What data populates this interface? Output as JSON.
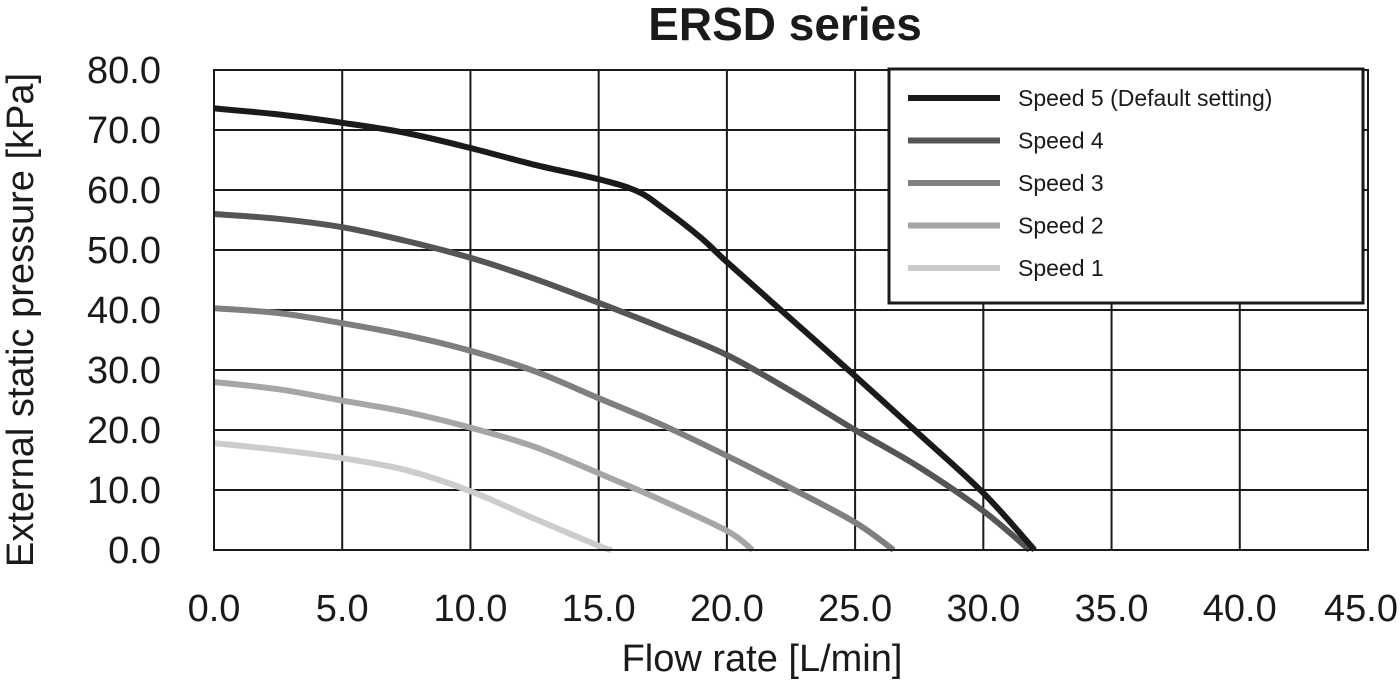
{
  "chart_data": {
    "type": "line",
    "title": "ERSD series",
    "xlabel": "Flow rate [L/min]",
    "ylabel": "External static pressure [kPa]",
    "xlim": [
      0,
      45
    ],
    "ylim": [
      0,
      80
    ],
    "x_ticks": [
      "0.0",
      "5.0",
      "10.0",
      "15.0",
      "20.0",
      "25.0",
      "30.0",
      "35.0",
      "40.0",
      "45.0"
    ],
    "y_ticks": [
      "0.0",
      "10.0",
      "20.0",
      "30.0",
      "40.0",
      "50.0",
      "60.0",
      "70.0",
      "80.0"
    ],
    "grid": true,
    "legend_position": "top-right",
    "series": [
      {
        "name": "Speed 5 (Default setting)",
        "color": "#1a1a1a",
        "points": [
          [
            0,
            73.6
          ],
          [
            2.5,
            72.6
          ],
          [
            5,
            71.2
          ],
          [
            7.5,
            69.5
          ],
          [
            10,
            67
          ],
          [
            12.5,
            64.2
          ],
          [
            15,
            61.8
          ],
          [
            16.5,
            59.8
          ],
          [
            17.5,
            57
          ],
          [
            19,
            52
          ],
          [
            20,
            48
          ],
          [
            22.5,
            38.5
          ],
          [
            25,
            29
          ],
          [
            27.5,
            19.3
          ],
          [
            30,
            9.5
          ],
          [
            32,
            0
          ]
        ]
      },
      {
        "name": "Speed 4",
        "color": "#555555",
        "points": [
          [
            0,
            56
          ],
          [
            2.5,
            55.2
          ],
          [
            5,
            53.8
          ],
          [
            7.5,
            51.5
          ],
          [
            10,
            48.7
          ],
          [
            12.5,
            45.2
          ],
          [
            15,
            41.2
          ],
          [
            17.5,
            37
          ],
          [
            20,
            32.5
          ],
          [
            22.5,
            26.5
          ],
          [
            25,
            20
          ],
          [
            27.5,
            13.8
          ],
          [
            30,
            6.5
          ],
          [
            31.8,
            0
          ]
        ]
      },
      {
        "name": "Speed 3",
        "color": "#7f7f7f",
        "points": [
          [
            0,
            40.3
          ],
          [
            2.5,
            39.5
          ],
          [
            5,
            37.8
          ],
          [
            7.5,
            35.8
          ],
          [
            10,
            33.2
          ],
          [
            12.5,
            29.8
          ],
          [
            15,
            25.3
          ],
          [
            17.5,
            20.8
          ],
          [
            20,
            15.7
          ],
          [
            22.5,
            10.3
          ],
          [
            25,
            4.6
          ],
          [
            26.5,
            0
          ]
        ]
      },
      {
        "name": "Speed 2",
        "color": "#a6a6a6",
        "points": [
          [
            0,
            28
          ],
          [
            2.5,
            26.8
          ],
          [
            5,
            24.9
          ],
          [
            7.5,
            23
          ],
          [
            10,
            20.4
          ],
          [
            12.5,
            17.2
          ],
          [
            15,
            12.8
          ],
          [
            17.5,
            8.2
          ],
          [
            20,
            3.2
          ],
          [
            21,
            0
          ]
        ]
      },
      {
        "name": "Speed 1",
        "color": "#cccccc",
        "points": [
          [
            0,
            17.8
          ],
          [
            2.5,
            16.7
          ],
          [
            5,
            15.3
          ],
          [
            7.5,
            13.3
          ],
          [
            10,
            9.8
          ],
          [
            12.5,
            5.2
          ],
          [
            15,
            0.7
          ],
          [
            15.5,
            0
          ]
        ]
      }
    ]
  }
}
